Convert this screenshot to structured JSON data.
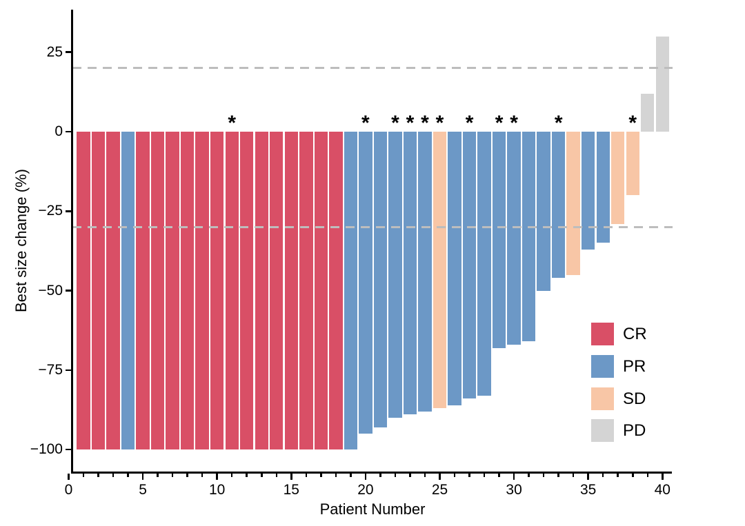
{
  "chart_data": {
    "type": "bar",
    "chart_kind": "waterfall",
    "title": "",
    "xlabel": "Patient Number",
    "ylabel": "Best size change (%)",
    "x_major_ticks": [
      0,
      5,
      10,
      15,
      20,
      25,
      30,
      35,
      40
    ],
    "x_minor_tick_every": 1,
    "xlim": [
      0,
      40.6
    ],
    "ylim": [
      -107,
      38
    ],
    "y_ticks": [
      25,
      0,
      -25,
      -50,
      -75,
      -100
    ],
    "grid": "off",
    "reference_lines_y": [
      20,
      -30
    ],
    "reference_line_style": "dashed",
    "reference_line_color": "#bdbdbd",
    "axis_color": "#000000",
    "annotation_symbol": "*",
    "legend": {
      "position": "inside-right",
      "entries": [
        {
          "label": "CR",
          "color": "#d94f66"
        },
        {
          "label": "PR",
          "color": "#6c98c6"
        },
        {
          "label": "SD",
          "color": "#f8c6a6"
        },
        {
          "label": "PD",
          "color": "#d4d4d4"
        }
      ]
    },
    "series": [
      {
        "patient": 1,
        "value": -100,
        "response": "CR",
        "starred": false
      },
      {
        "patient": 2,
        "value": -100,
        "response": "CR",
        "starred": false
      },
      {
        "patient": 3,
        "value": -100,
        "response": "CR",
        "starred": false
      },
      {
        "patient": 4,
        "value": -100,
        "response": "PR",
        "starred": false
      },
      {
        "patient": 5,
        "value": -100,
        "response": "CR",
        "starred": false
      },
      {
        "patient": 6,
        "value": -100,
        "response": "CR",
        "starred": false
      },
      {
        "patient": 7,
        "value": -100,
        "response": "CR",
        "starred": false
      },
      {
        "patient": 8,
        "value": -100,
        "response": "CR",
        "starred": false
      },
      {
        "patient": 9,
        "value": -100,
        "response": "CR",
        "starred": false
      },
      {
        "patient": 10,
        "value": -100,
        "response": "CR",
        "starred": false
      },
      {
        "patient": 11,
        "value": -100,
        "response": "CR",
        "starred": true
      },
      {
        "patient": 12,
        "value": -100,
        "response": "CR",
        "starred": false
      },
      {
        "patient": 13,
        "value": -100,
        "response": "CR",
        "starred": false
      },
      {
        "patient": 14,
        "value": -100,
        "response": "CR",
        "starred": false
      },
      {
        "patient": 15,
        "value": -100,
        "response": "CR",
        "starred": false
      },
      {
        "patient": 16,
        "value": -100,
        "response": "CR",
        "starred": false
      },
      {
        "patient": 17,
        "value": -100,
        "response": "CR",
        "starred": false
      },
      {
        "patient": 18,
        "value": -100,
        "response": "CR",
        "starred": false
      },
      {
        "patient": 19,
        "value": -100,
        "response": "PR",
        "starred": false
      },
      {
        "patient": 20,
        "value": -95,
        "response": "PR",
        "starred": true
      },
      {
        "patient": 21,
        "value": -93,
        "response": "PR",
        "starred": false
      },
      {
        "patient": 22,
        "value": -90,
        "response": "PR",
        "starred": true
      },
      {
        "patient": 23,
        "value": -89,
        "response": "PR",
        "starred": true
      },
      {
        "patient": 24,
        "value": -88,
        "response": "PR",
        "starred": true
      },
      {
        "patient": 25,
        "value": -87,
        "response": "SD",
        "starred": true
      },
      {
        "patient": 26,
        "value": -86,
        "response": "PR",
        "starred": false
      },
      {
        "patient": 27,
        "value": -84,
        "response": "PR",
        "starred": true
      },
      {
        "patient": 28,
        "value": -83,
        "response": "PR",
        "starred": false
      },
      {
        "patient": 29,
        "value": -68,
        "response": "PR",
        "starred": true
      },
      {
        "patient": 30,
        "value": -67,
        "response": "PR",
        "starred": true
      },
      {
        "patient": 31,
        "value": -66,
        "response": "PR",
        "starred": false
      },
      {
        "patient": 32,
        "value": -50,
        "response": "PR",
        "starred": false
      },
      {
        "patient": 33,
        "value": -46,
        "response": "PR",
        "starred": true
      },
      {
        "patient": 34,
        "value": -45,
        "response": "SD",
        "starred": false
      },
      {
        "patient": 35,
        "value": -37,
        "response": "PR",
        "starred": false
      },
      {
        "patient": 36,
        "value": -35,
        "response": "PR",
        "starred": false
      },
      {
        "patient": 37,
        "value": -29,
        "response": "SD",
        "starred": false
      },
      {
        "patient": 38,
        "value": -20,
        "response": "SD",
        "starred": true
      },
      {
        "patient": 39,
        "value": 12,
        "response": "PD",
        "starred": false
      },
      {
        "patient": 40,
        "value": 30,
        "response": "PD",
        "starred": false
      }
    ]
  }
}
